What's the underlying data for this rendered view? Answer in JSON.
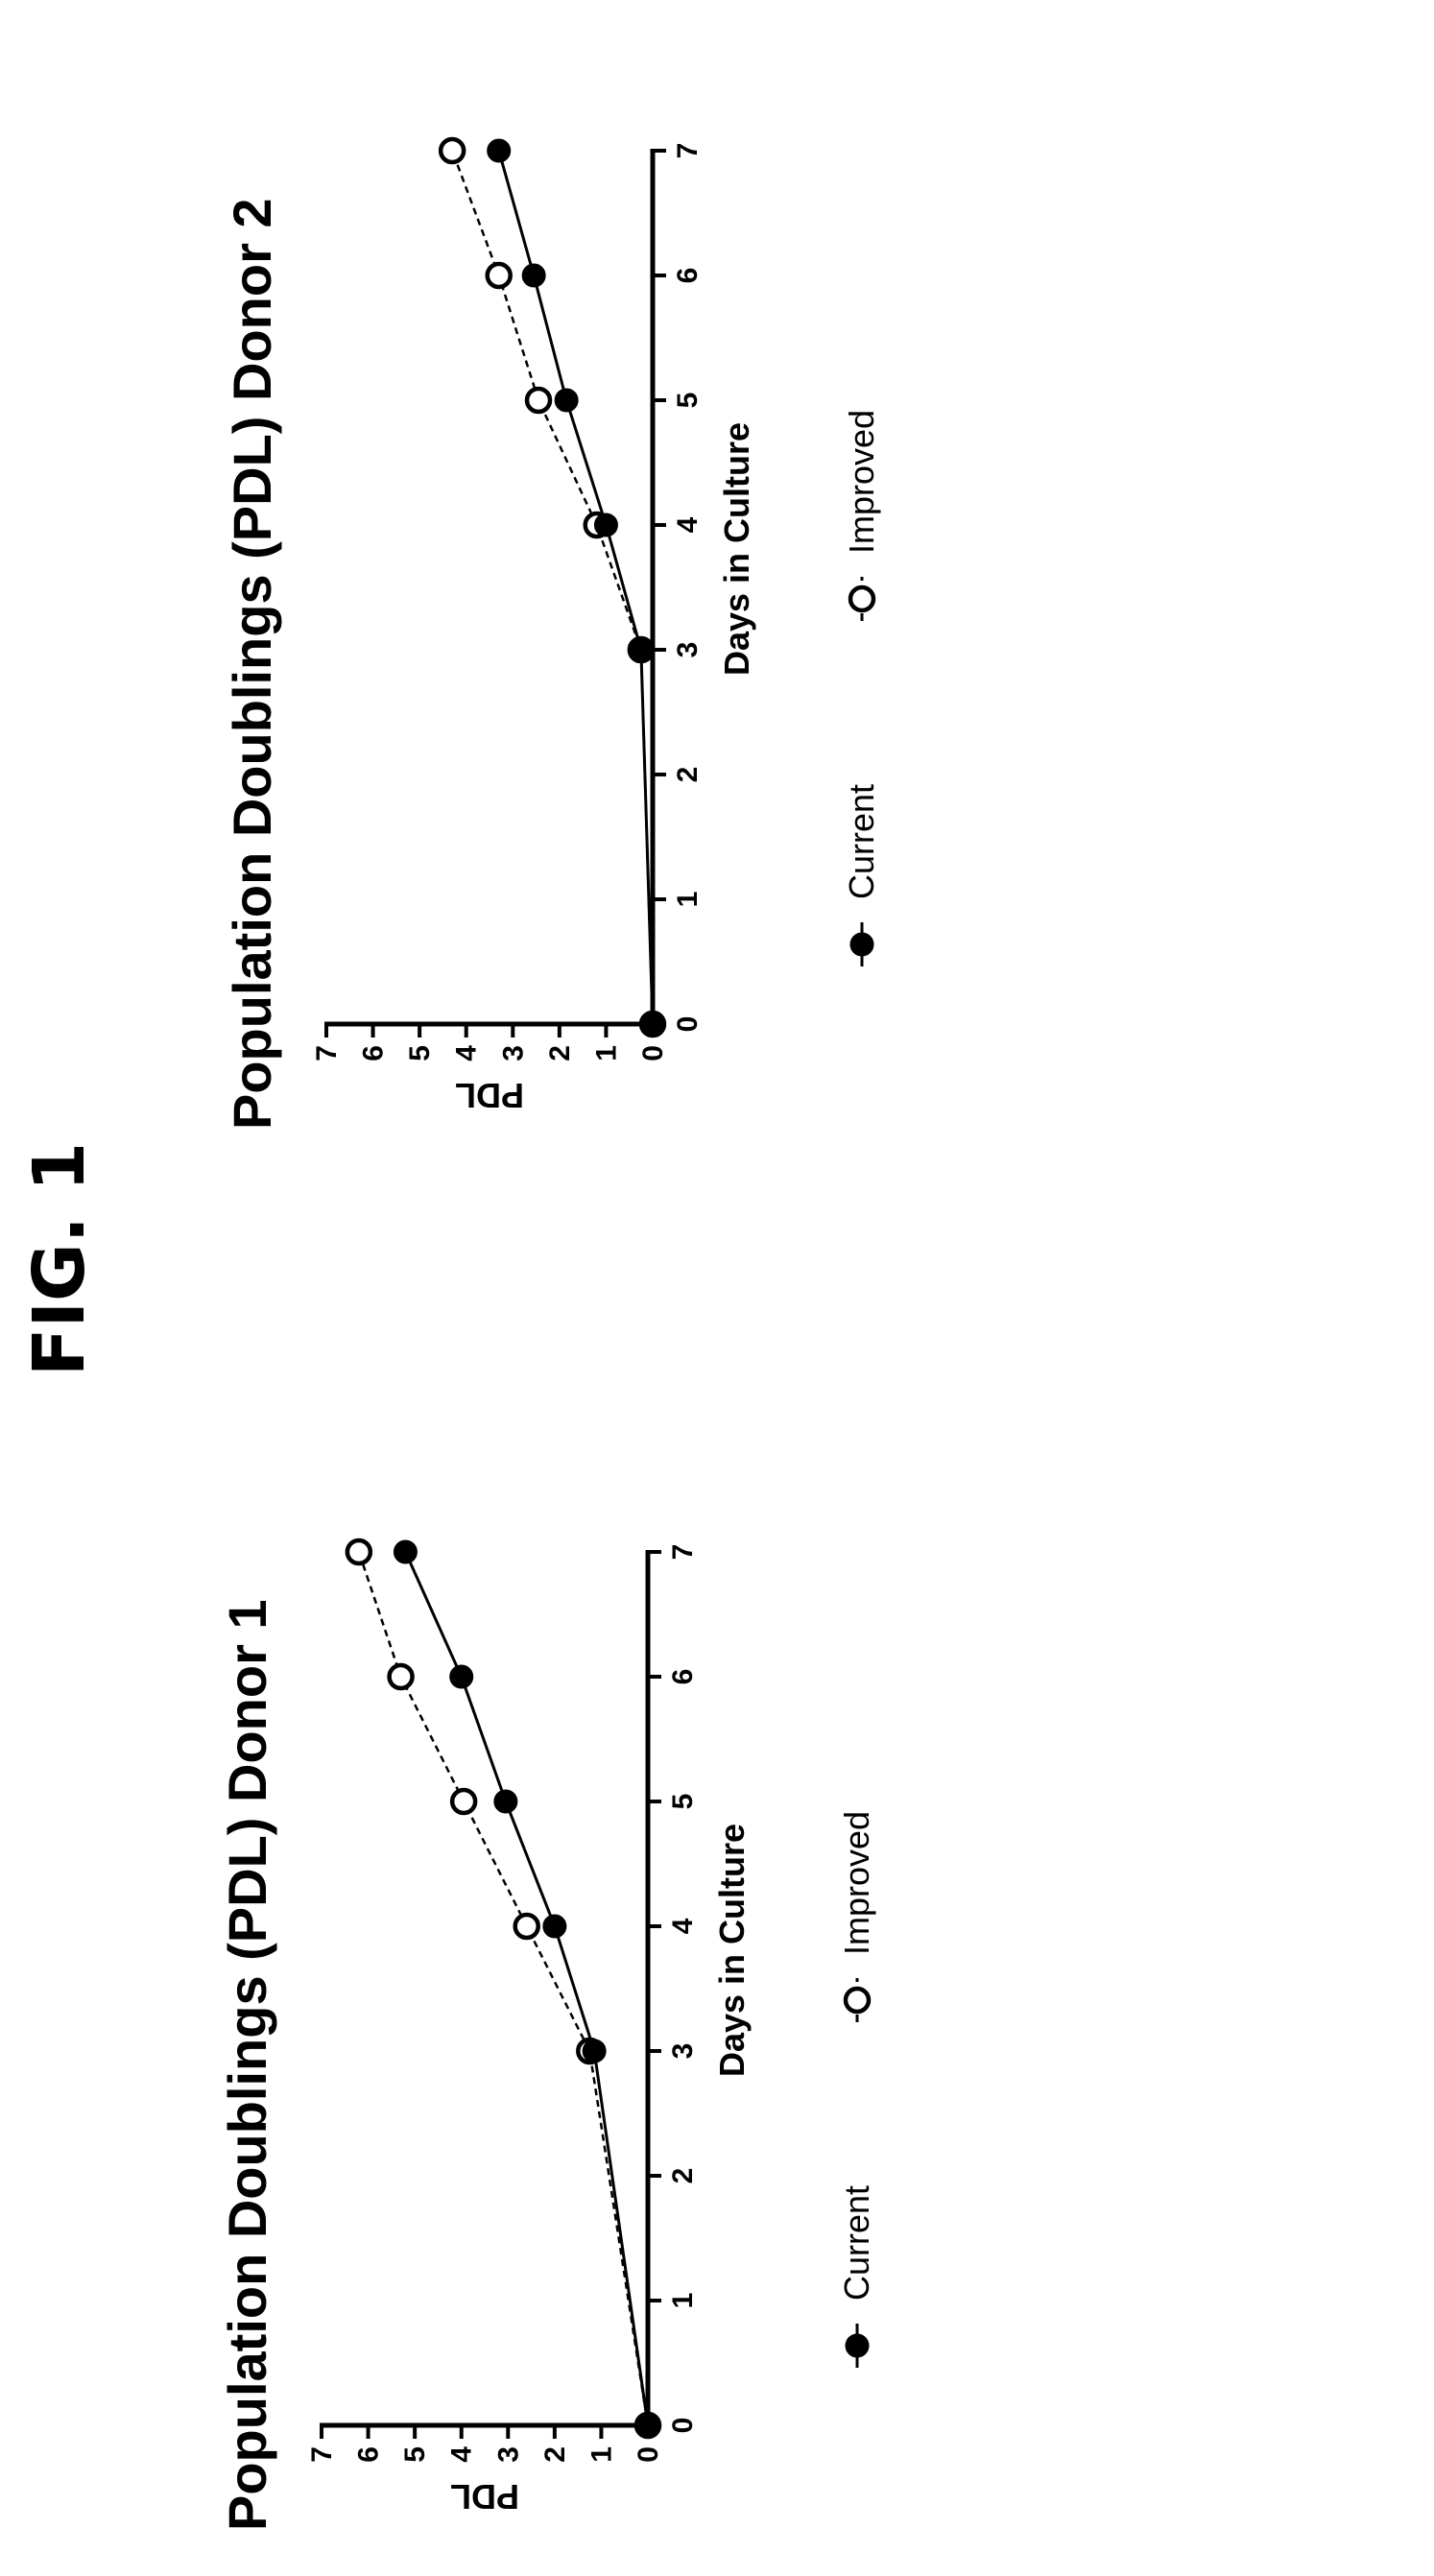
{
  "figure_title": "FIG. 1",
  "chart_data": [
    {
      "type": "line",
      "title": "Population  Doublings (PDL) Donor 1",
      "xlabel": "Days in Culture",
      "ylabel": "PDL",
      "xlim": [
        0,
        7
      ],
      "ylim": [
        0,
        7
      ],
      "xticks": [
        0,
        1,
        2,
        3,
        4,
        5,
        6,
        7
      ],
      "yticks": [
        0,
        1,
        2,
        3,
        4,
        5,
        6,
        7
      ],
      "grid": false,
      "legend": "bottom",
      "series": [
        {
          "name": "Current",
          "style": "solid",
          "marker": "filled-circle",
          "x": [
            0,
            3,
            4,
            5,
            6,
            7
          ],
          "y": [
            0,
            1.15,
            2.0,
            3.05,
            4.0,
            5.2
          ]
        },
        {
          "name": "Improved",
          "style": "dashed",
          "marker": "open-circle",
          "x": [
            0,
            3,
            4,
            5,
            6,
            7
          ],
          "y": [
            0,
            1.25,
            2.6,
            3.95,
            5.3,
            6.2
          ]
        }
      ]
    },
    {
      "type": "line",
      "title": "Population  Doublings (PDL) Donor 2",
      "xlabel": "Days in Culture",
      "ylabel": "PDL",
      "xlim": [
        0,
        7
      ],
      "ylim": [
        0,
        7
      ],
      "xticks": [
        0,
        1,
        2,
        3,
        4,
        5,
        6,
        7
      ],
      "yticks": [
        0,
        1,
        2,
        3,
        4,
        5,
        6,
        7
      ],
      "grid": false,
      "legend": "bottom",
      "series": [
        {
          "name": "Current",
          "style": "solid",
          "marker": "filled-circle",
          "x": [
            0,
            3,
            4,
            5,
            6,
            7
          ],
          "y": [
            0,
            0.25,
            1.0,
            1.85,
            2.55,
            3.3
          ]
        },
        {
          "name": "Improved",
          "style": "dashed",
          "marker": "open-circle",
          "x": [
            0,
            3,
            4,
            5,
            6,
            7
          ],
          "y": [
            0,
            0.25,
            1.2,
            2.45,
            3.3,
            4.3
          ]
        }
      ]
    }
  ],
  "colors": {
    "ink": "#000000",
    "background": "#ffffff"
  }
}
